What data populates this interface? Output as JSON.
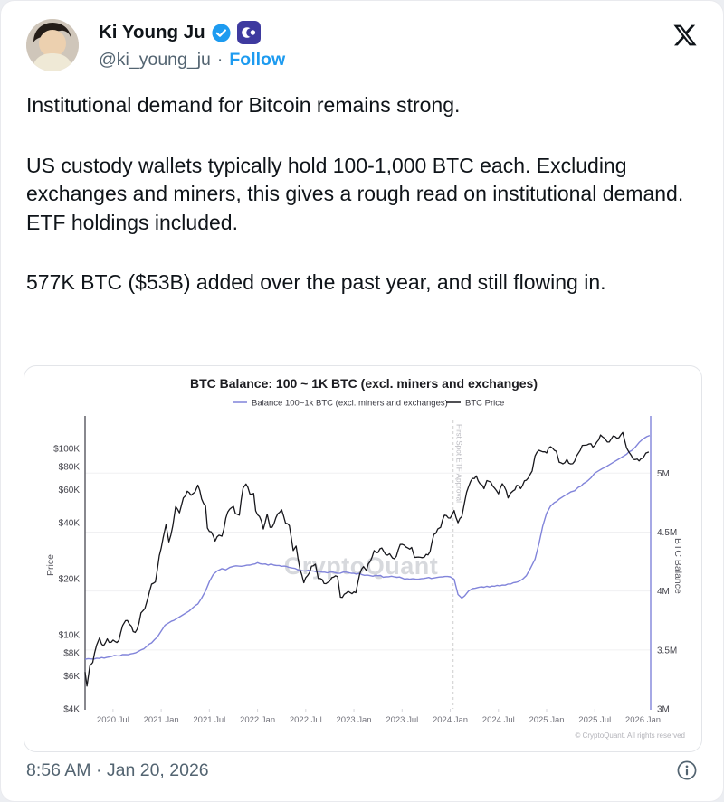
{
  "header": {
    "display_name": "Ki Young Ju",
    "handle": "@ki_young_ju",
    "separator": "·",
    "follow_label": "Follow"
  },
  "body": {
    "paragraphs": [
      "Institutional demand for Bitcoin remains strong.",
      "US custody wallets typically hold 100-1,000 BTC each. Excluding exchanges and miners, this gives a rough read on institutional demand. ETF holdings included.",
      "577K BTC ($53B) added over the past year, and still flowing in."
    ]
  },
  "footer": {
    "timestamp": "8:56 AM · Jan 20, 2026"
  },
  "colors": {
    "accent_blue": "#1d9bf0",
    "text_primary": "#0f1419",
    "text_secondary": "#536471",
    "org_badge_bg": "#3e3a9f",
    "balance_line": "#8184da",
    "price_line": "#17171c",
    "grid": "#f0f0f2",
    "annotation_line": "#cccccc"
  },
  "chart_data": {
    "type": "line",
    "title": "BTC Balance: 100 ~ 1K BTC (excl. miners and exchanges)",
    "watermark": "CryptoQuant",
    "copyright": "© CryptoQuant. All rights reserved",
    "legend": [
      {
        "label": "Balance 100~1k BTC (excl. miners and exchanges)",
        "color": "#8184da"
      },
      {
        "label": "BTC Price",
        "color": "#17171c"
      }
    ],
    "x_axis": {
      "labels": [
        "2020 Jul",
        "2021 Jan",
        "2021 Jul",
        "2022 Jan",
        "2022 Jul",
        "2023 Jan",
        "2023 Jul",
        "2024 Jan",
        "2024 Jul",
        "2025 Jan",
        "2025 Jul",
        "2026 Jan"
      ],
      "years": [
        2020.5,
        2021.0,
        2021.5,
        2022.0,
        2022.5,
        2023.0,
        2023.5,
        2024.0,
        2024.5,
        2025.0,
        2025.5,
        2026.0
      ],
      "range": [
        2020.21,
        2026.08
      ]
    },
    "left_axis": {
      "title": "Price",
      "scale": "log",
      "tick_labels": [
        "$100K",
        "$80K",
        "$60K",
        "$40K",
        "$20K",
        "$10K",
        "$8K",
        "$6K",
        "$4K"
      ],
      "tick_values": [
        100000,
        80000,
        60000,
        40000,
        20000,
        10000,
        8000,
        6000,
        4000
      ],
      "range": [
        4000,
        146000
      ]
    },
    "right_axis": {
      "title": "BTC Balance",
      "scale": "linear",
      "tick_labels": [
        "5M",
        "4.5M",
        "4M",
        "3.5M",
        "3M"
      ],
      "tick_values": [
        5,
        4.5,
        4,
        3.5,
        3
      ],
      "grid_values": [
        3.5,
        4,
        4.5,
        5
      ],
      "range": [
        3,
        5.47
      ]
    },
    "annotation": {
      "label": "First Spot ETF Approval",
      "year": 2024.03
    },
    "series": [
      {
        "name": "Balance 100~1k BTC (excl. miners and exchanges)",
        "axis": "right",
        "color": "#8184da",
        "points": [
          [
            2020.21,
            3.42
          ],
          [
            2020.33,
            3.43
          ],
          [
            2020.46,
            3.44
          ],
          [
            2020.54,
            3.45
          ],
          [
            2020.63,
            3.46
          ],
          [
            2020.71,
            3.47
          ],
          [
            2020.79,
            3.5
          ],
          [
            2020.85,
            3.53
          ],
          [
            2020.9,
            3.56
          ],
          [
            2020.96,
            3.61
          ],
          [
            2021.0,
            3.66
          ],
          [
            2021.04,
            3.71
          ],
          [
            2021.08,
            3.73
          ],
          [
            2021.13,
            3.75
          ],
          [
            2021.17,
            3.77
          ],
          [
            2021.21,
            3.79
          ],
          [
            2021.25,
            3.81
          ],
          [
            2021.29,
            3.83
          ],
          [
            2021.33,
            3.86
          ],
          [
            2021.38,
            3.89
          ],
          [
            2021.42,
            3.94
          ],
          [
            2021.46,
            4.0
          ],
          [
            2021.5,
            4.08
          ],
          [
            2021.54,
            4.14
          ],
          [
            2021.58,
            4.17
          ],
          [
            2021.63,
            4.19
          ],
          [
            2021.67,
            4.18
          ],
          [
            2021.71,
            4.2
          ],
          [
            2021.75,
            4.21
          ],
          [
            2021.83,
            4.21
          ],
          [
            2021.92,
            4.22
          ],
          [
            2022.0,
            4.24
          ],
          [
            2022.08,
            4.23
          ],
          [
            2022.17,
            4.22
          ],
          [
            2022.25,
            4.21
          ],
          [
            2022.33,
            4.2
          ],
          [
            2022.42,
            4.18
          ],
          [
            2022.5,
            4.17
          ],
          [
            2022.58,
            4.17
          ],
          [
            2022.67,
            4.16
          ],
          [
            2022.75,
            4.16
          ],
          [
            2022.83,
            4.15
          ],
          [
            2022.92,
            4.16
          ],
          [
            2023.0,
            4.15
          ],
          [
            2023.08,
            4.14
          ],
          [
            2023.17,
            4.13
          ],
          [
            2023.25,
            4.13
          ],
          [
            2023.33,
            4.12
          ],
          [
            2023.42,
            4.12
          ],
          [
            2023.5,
            4.11
          ],
          [
            2023.58,
            4.1
          ],
          [
            2023.67,
            4.1
          ],
          [
            2023.75,
            4.11
          ],
          [
            2023.83,
            4.11
          ],
          [
            2023.92,
            4.12
          ],
          [
            2024.0,
            4.12
          ],
          [
            2024.04,
            4.1
          ],
          [
            2024.08,
            3.97
          ],
          [
            2024.12,
            3.94
          ],
          [
            2024.15,
            3.96
          ],
          [
            2024.19,
            4.0
          ],
          [
            2024.23,
            4.02
          ],
          [
            2024.29,
            4.03
          ],
          [
            2024.38,
            4.04
          ],
          [
            2024.46,
            4.04
          ],
          [
            2024.54,
            4.05
          ],
          [
            2024.63,
            4.06
          ],
          [
            2024.71,
            4.08
          ],
          [
            2024.75,
            4.1
          ],
          [
            2024.79,
            4.13
          ],
          [
            2024.83,
            4.19
          ],
          [
            2024.88,
            4.27
          ],
          [
            2024.92,
            4.4
          ],
          [
            2024.96,
            4.55
          ],
          [
            2025.0,
            4.66
          ],
          [
            2025.04,
            4.72
          ],
          [
            2025.08,
            4.75
          ],
          [
            2025.13,
            4.78
          ],
          [
            2025.17,
            4.8
          ],
          [
            2025.21,
            4.82
          ],
          [
            2025.25,
            4.84
          ],
          [
            2025.29,
            4.85
          ],
          [
            2025.33,
            4.88
          ],
          [
            2025.38,
            4.91
          ],
          [
            2025.42,
            4.93
          ],
          [
            2025.46,
            4.96
          ],
          [
            2025.5,
            5.0
          ],
          [
            2025.54,
            5.02
          ],
          [
            2025.58,
            5.04
          ],
          [
            2025.63,
            5.06
          ],
          [
            2025.67,
            5.08
          ],
          [
            2025.71,
            5.1
          ],
          [
            2025.75,
            5.12
          ],
          [
            2025.79,
            5.14
          ],
          [
            2025.83,
            5.16
          ],
          [
            2025.88,
            5.19
          ],
          [
            2025.92,
            5.22
          ],
          [
            2025.96,
            5.26
          ],
          [
            2026.0,
            5.29
          ],
          [
            2026.04,
            5.31
          ],
          [
            2026.07,
            5.32
          ]
        ]
      },
      {
        "name": "BTC Price",
        "axis": "left",
        "color": "#17171c",
        "points": [
          [
            2020.21,
            6300
          ],
          [
            2020.23,
            5300
          ],
          [
            2020.26,
            6800
          ],
          [
            2020.29,
            7100
          ],
          [
            2020.33,
            8800
          ],
          [
            2020.36,
            9600
          ],
          [
            2020.4,
            8700
          ],
          [
            2020.44,
            9500
          ],
          [
            2020.48,
            9100
          ],
          [
            2020.52,
            9200
          ],
          [
            2020.56,
            9300
          ],
          [
            2020.6,
            11200
          ],
          [
            2020.63,
            11900
          ],
          [
            2020.67,
            11400
          ],
          [
            2020.71,
            10400
          ],
          [
            2020.75,
            10700
          ],
          [
            2020.79,
            13100
          ],
          [
            2020.83,
            13800
          ],
          [
            2020.86,
            15600
          ],
          [
            2020.9,
            18700
          ],
          [
            2020.94,
            19200
          ],
          [
            2020.98,
            26500
          ],
          [
            2021.02,
            33000
          ],
          [
            2021.05,
            39000
          ],
          [
            2021.08,
            31500
          ],
          [
            2021.12,
            38300
          ],
          [
            2021.15,
            48700
          ],
          [
            2021.19,
            45100
          ],
          [
            2021.23,
            54200
          ],
          [
            2021.27,
            58900
          ],
          [
            2021.31,
            56000
          ],
          [
            2021.35,
            58300
          ],
          [
            2021.38,
            63500
          ],
          [
            2021.42,
            53500
          ],
          [
            2021.46,
            49000
          ],
          [
            2021.48,
            37300
          ],
          [
            2021.52,
            35600
          ],
          [
            2021.56,
            31800
          ],
          [
            2021.6,
            34200
          ],
          [
            2021.63,
            33800
          ],
          [
            2021.67,
            42200
          ],
          [
            2021.71,
            47100
          ],
          [
            2021.75,
            48800
          ],
          [
            2021.77,
            44600
          ],
          [
            2021.81,
            43800
          ],
          [
            2021.85,
            61300
          ],
          [
            2021.88,
            64400
          ],
          [
            2021.92,
            56900
          ],
          [
            2021.96,
            57300
          ],
          [
            2021.98,
            46200
          ],
          [
            2022.02,
            43100
          ],
          [
            2022.06,
            36900
          ],
          [
            2022.1,
            44400
          ],
          [
            2022.13,
            37700
          ],
          [
            2022.17,
            39400
          ],
          [
            2022.21,
            44500
          ],
          [
            2022.25,
            46800
          ],
          [
            2022.29,
            39700
          ],
          [
            2022.33,
            38500
          ],
          [
            2022.37,
            28300
          ],
          [
            2022.4,
            29900
          ],
          [
            2022.44,
            22500
          ],
          [
            2022.48,
            19000
          ],
          [
            2022.52,
            20800
          ],
          [
            2022.56,
            23300
          ],
          [
            2022.6,
            23900
          ],
          [
            2022.63,
            20000
          ],
          [
            2022.67,
            19800
          ],
          [
            2022.71,
            18800
          ],
          [
            2022.75,
            19400
          ],
          [
            2022.79,
            20400
          ],
          [
            2022.83,
            20500
          ],
          [
            2022.86,
            15900
          ],
          [
            2022.9,
            16500
          ],
          [
            2022.94,
            17100
          ],
          [
            2022.98,
            16600
          ],
          [
            2023.02,
            16800
          ],
          [
            2023.06,
            21100
          ],
          [
            2023.1,
            23200
          ],
          [
            2023.13,
            22100
          ],
          [
            2023.17,
            24800
          ],
          [
            2023.21,
            28300
          ],
          [
            2023.25,
            27600
          ],
          [
            2023.29,
            29200
          ],
          [
            2023.33,
            26900
          ],
          [
            2023.37,
            27200
          ],
          [
            2023.4,
            25800
          ],
          [
            2023.44,
            26300
          ],
          [
            2023.48,
            30500
          ],
          [
            2023.52,
            30300
          ],
          [
            2023.56,
            29200
          ],
          [
            2023.6,
            29400
          ],
          [
            2023.63,
            26000
          ],
          [
            2023.67,
            26100
          ],
          [
            2023.71,
            25900
          ],
          [
            2023.75,
            27000
          ],
          [
            2023.79,
            27900
          ],
          [
            2023.83,
            34500
          ],
          [
            2023.87,
            36900
          ],
          [
            2023.9,
            37700
          ],
          [
            2023.94,
            43800
          ],
          [
            2023.98,
            42300
          ],
          [
            2024.02,
            44200
          ],
          [
            2024.04,
            46400
          ],
          [
            2024.08,
            39900
          ],
          [
            2024.12,
            43000
          ],
          [
            2024.15,
            51800
          ],
          [
            2024.19,
            62400
          ],
          [
            2024.23,
            69000
          ],
          [
            2024.27,
            71200
          ],
          [
            2024.31,
            64500
          ],
          [
            2024.35,
            60800
          ],
          [
            2024.38,
            67200
          ],
          [
            2024.42,
            66000
          ],
          [
            2024.46,
            61200
          ],
          [
            2024.5,
            57000
          ],
          [
            2024.54,
            64600
          ],
          [
            2024.58,
            59300
          ],
          [
            2024.6,
            54200
          ],
          [
            2024.65,
            59000
          ],
          [
            2024.69,
            63300
          ],
          [
            2024.73,
            60800
          ],
          [
            2024.77,
            67000
          ],
          [
            2024.81,
            69400
          ],
          [
            2024.85,
            75600
          ],
          [
            2024.88,
            91000
          ],
          [
            2024.92,
            97700
          ],
          [
            2024.96,
            95800
          ],
          [
            2025.0,
            94400
          ],
          [
            2025.04,
            102100
          ],
          [
            2025.08,
            97700
          ],
          [
            2025.1,
            96500
          ],
          [
            2025.13,
            84300
          ],
          [
            2025.17,
            82600
          ],
          [
            2025.21,
            87200
          ],
          [
            2025.25,
            82500
          ],
          [
            2025.29,
            85200
          ],
          [
            2025.33,
            94200
          ],
          [
            2025.37,
            103700
          ],
          [
            2025.4,
            104000
          ],
          [
            2025.44,
            105600
          ],
          [
            2025.48,
            101600
          ],
          [
            2025.52,
            108000
          ],
          [
            2025.56,
            118000
          ],
          [
            2025.6,
            113400
          ],
          [
            2025.63,
            108200
          ],
          [
            2025.67,
            112000
          ],
          [
            2025.71,
            115800
          ],
          [
            2025.75,
            114000
          ],
          [
            2025.79,
            121700
          ],
          [
            2025.81,
            110100
          ],
          [
            2025.85,
            96400
          ],
          [
            2025.88,
            91400
          ],
          [
            2025.92,
            87000
          ],
          [
            2025.96,
            85600
          ],
          [
            2026.0,
            88600
          ],
          [
            2026.03,
            94300
          ],
          [
            2026.06,
            95600
          ]
        ]
      }
    ]
  }
}
